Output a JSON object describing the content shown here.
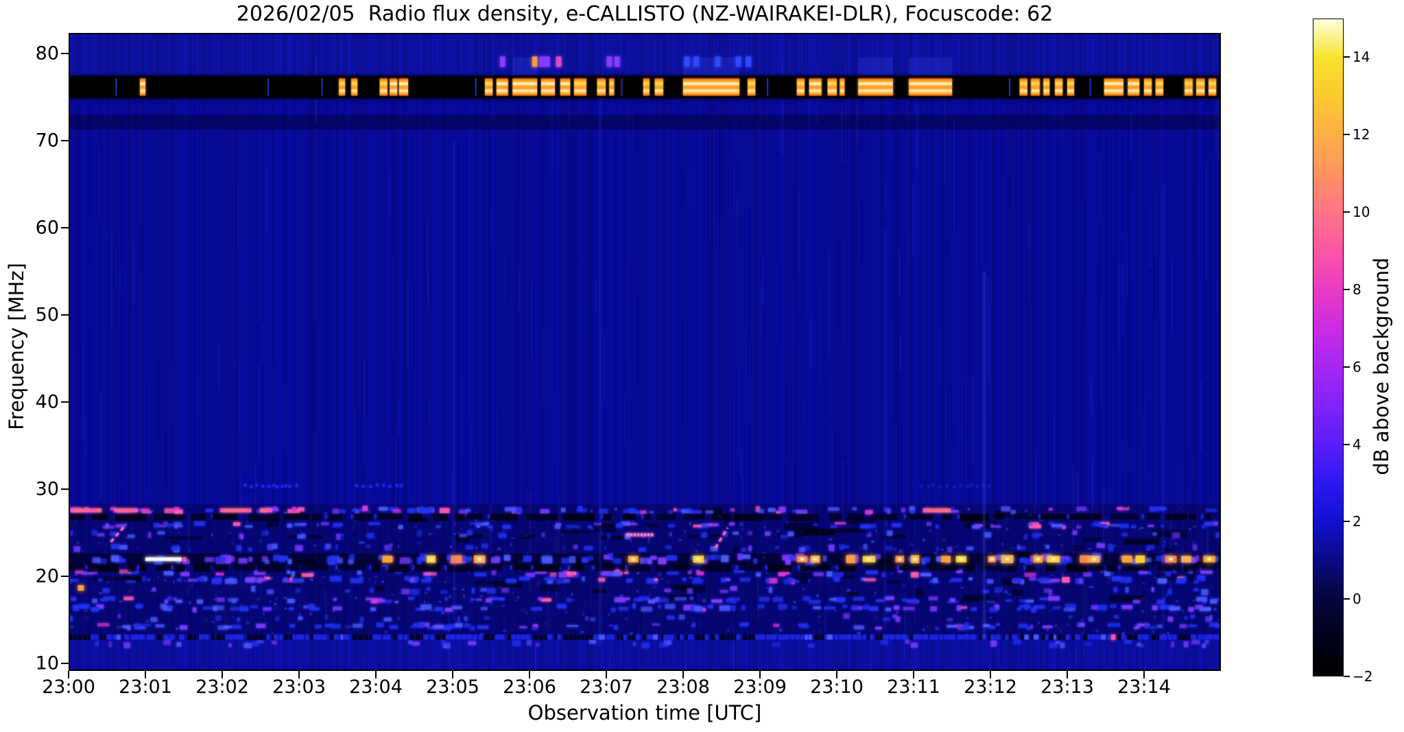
{
  "figure": {
    "background": "#ffffff"
  },
  "chart_data": {
    "type": "heatmap",
    "title": "2026/02/05  Radio flux density, e-CALLISTO (NZ-WAIRAKEI-DLR), Focuscode: 62",
    "xlabel": "Observation time [UTC]",
    "ylabel": "Frequency [MHz]",
    "colorbar_label": "dB above background",
    "x_ticks": [
      "23:00",
      "23:01",
      "23:02",
      "23:03",
      "23:04",
      "23:05",
      "23:06",
      "23:07",
      "23:08",
      "23:09",
      "23:10",
      "23:11",
      "23:12",
      "23:13",
      "23:14"
    ],
    "x_range_minutes": [
      0,
      15
    ],
    "y_ticks": [
      80,
      70,
      60,
      50,
      40,
      30,
      20,
      10
    ],
    "y_range_mhz": [
      9.2,
      82.4
    ],
    "colorbar_ticks": [
      14,
      12,
      10,
      8,
      6,
      4,
      2,
      0,
      -2
    ],
    "colorbar_range": [
      -2,
      15
    ],
    "grid": false,
    "colormap_stops": [
      [
        -2,
        "#000000"
      ],
      [
        -1,
        "#01011c"
      ],
      [
        0,
        "#05053f"
      ],
      [
        1,
        "#0a0a85"
      ],
      [
        2,
        "#1111cf"
      ],
      [
        3,
        "#2d17f2"
      ],
      [
        4,
        "#5b1df8"
      ],
      [
        5,
        "#8222fa"
      ],
      [
        6,
        "#a626f4"
      ],
      [
        7,
        "#cb2ce2"
      ],
      [
        8,
        "#ea3bc4"
      ],
      [
        9,
        "#fb55a5"
      ],
      [
        10,
        "#ff7487"
      ],
      [
        11,
        "#ff9260"
      ],
      [
        12,
        "#ffae45"
      ],
      [
        13,
        "#fcc92f"
      ],
      [
        14,
        "#f7e32c"
      ],
      [
        15,
        "#ffffdf"
      ]
    ],
    "colors": {
      "background_blue": "#0a0ba6",
      "speck_blue": "#2231f0",
      "bright_blue": "#4a5aff",
      "violet": "#7a3cff",
      "magenta": "#d838d8",
      "pink": "#ff5cb0",
      "orange": "#ffa435",
      "yellow": "#ffd23c",
      "white": "#ffffff",
      "black": "#000000"
    },
    "features": {
      "band": {
        "f_top": 77.45,
        "f_bottom": 74.95,
        "segments": [
          [
            0.93,
            1.0,
            1
          ],
          [
            3.52,
            3.6,
            0.9
          ],
          [
            3.68,
            3.76,
            0.9
          ],
          [
            4.05,
            4.15,
            0.9
          ],
          [
            4.18,
            4.28,
            0.95
          ],
          [
            4.3,
            4.42,
            0.95
          ],
          [
            5.42,
            5.52,
            0.9
          ],
          [
            5.57,
            5.72,
            0.95
          ],
          [
            5.78,
            6.1,
            1
          ],
          [
            6.15,
            6.33,
            0.95
          ],
          [
            6.4,
            6.53,
            0.95
          ],
          [
            6.58,
            6.74,
            0.9
          ],
          [
            6.88,
            6.99,
            0.9
          ],
          [
            7.04,
            7.1,
            0.85
          ],
          [
            7.48,
            7.56,
            0.85
          ],
          [
            7.63,
            7.74,
            0.9
          ],
          [
            8.0,
            8.73,
            1
          ],
          [
            8.84,
            8.94,
            0.85
          ],
          [
            9.48,
            9.58,
            0.9
          ],
          [
            9.64,
            9.8,
            0.95
          ],
          [
            9.88,
            10.0,
            0.9
          ],
          [
            10.04,
            10.1,
            0.85
          ],
          [
            10.28,
            10.73,
            1
          ],
          [
            10.94,
            11.5,
            1
          ],
          [
            12.38,
            12.48,
            0.9
          ],
          [
            12.53,
            12.64,
            0.9
          ],
          [
            12.69,
            12.77,
            0.85
          ],
          [
            12.84,
            12.94,
            0.9
          ],
          [
            13.0,
            13.09,
            0.85
          ],
          [
            13.48,
            13.73,
            0.95
          ],
          [
            13.79,
            13.94,
            0.95
          ],
          [
            14.0,
            14.1,
            0.9
          ],
          [
            14.15,
            14.25,
            0.85
          ],
          [
            14.53,
            14.63,
            0.9
          ],
          [
            14.68,
            14.79,
            0.9
          ],
          [
            14.84,
            14.94,
            0.85
          ]
        ],
        "blue_ticks": [
          0.62,
          2.6,
          3.3,
          5.3,
          7.2,
          9.1,
          12.25,
          13.3
        ]
      },
      "dots_79mhz": [
        [
          5.65,
          "v"
        ],
        [
          6.07,
          "o"
        ],
        [
          6.16,
          "v"
        ],
        [
          6.23,
          "v"
        ],
        [
          6.38,
          "m"
        ],
        [
          7.04,
          "v"
        ],
        [
          7.14,
          "v"
        ],
        [
          8.05,
          "b"
        ],
        [
          8.17,
          "b"
        ],
        [
          8.45,
          "b"
        ],
        [
          8.72,
          "b"
        ],
        [
          8.85,
          "b"
        ]
      ],
      "dot_colors": {
        "v": "#8a3cff",
        "o": "#ff9e3a",
        "m": "#e04cd0",
        "b": "#2e4bff"
      },
      "dark_band_72": [
        71.3,
        73.0
      ],
      "busy_region": [
        13.4,
        28.3
      ],
      "row_30mhz_segments": [
        [
          2.3,
          3.05
        ],
        [
          3.75,
          4.35
        ],
        [
          11.1,
          12.0
        ]
      ],
      "pink_segments_276": [
        [
          0.05,
          0.4
        ],
        [
          0.62,
          0.88
        ],
        [
          2.0,
          2.35
        ],
        [
          2.52,
          2.62
        ],
        [
          11.15,
          11.5
        ]
      ],
      "speckle_rows": [
        [
          27.6,
          5,
          6,
          0.3
        ],
        [
          25.9,
          4,
          5,
          0.12
        ],
        [
          20.4,
          5,
          4,
          0.25
        ],
        [
          19.6,
          5,
          6,
          0.1
        ],
        [
          17.3,
          4,
          5,
          0.06
        ],
        [
          16.4,
          5,
          6,
          0.06
        ],
        [
          14.3,
          4,
          5,
          0.05
        ]
      ],
      "sparse_rows": [
        [
          24.8,
          3
        ],
        [
          23.3,
          3
        ],
        [
          18.4,
          2
        ],
        [
          15.3,
          2
        ],
        [
          12.3,
          3
        ]
      ],
      "dark_rows": [
        26.9,
        21.05
      ],
      "dense_row": 13.05,
      "hot_row": {
        "f": 22.0,
        "blobs": [
          4.15,
          4.72,
          5.05,
          5.35,
          7.35,
          8.2,
          9.55,
          9.72,
          10.18,
          10.42,
          10.82,
          11.02,
          11.42,
          11.62,
          12.02,
          12.22,
          12.62,
          12.82,
          13.22,
          13.35,
          13.78,
          13.95,
          14.35,
          14.55,
          14.85
        ],
        "pale_segment": [
          1.0,
          1.47
        ]
      },
      "orange_singles": [
        [
          0.16,
          18.7
        ]
      ],
      "pink_dash": [
        7.28,
        7.62,
        24.8
      ],
      "diagonals": [
        [
          0.55,
          24.0,
          0.75,
          26.0
        ],
        [
          8.42,
          23.3,
          8.58,
          25.6
        ]
      ],
      "vstreaks": [
        [
          5.02,
          0.1,
          15,
          70
        ],
        [
          6.92,
          0.13,
          12,
          76
        ],
        [
          10.63,
          0.08,
          14,
          60
        ],
        [
          11.92,
          0.22,
          13,
          55
        ],
        [
          14.25,
          0.08,
          14,
          65
        ]
      ]
    }
  }
}
